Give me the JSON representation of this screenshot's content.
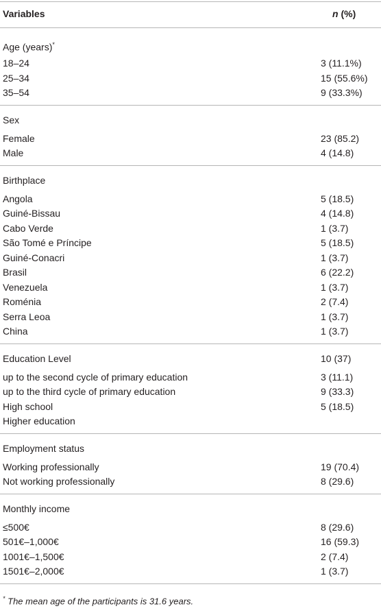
{
  "header": {
    "variables": "Variables",
    "n": "n",
    "percent": "(%)"
  },
  "sections": [
    {
      "title": "Age (years)",
      "title_marker": "*",
      "rows": [
        [
          "18–24",
          "3 (11.1%)"
        ],
        [
          "25–34",
          "15 (55.6%)"
        ],
        [
          "35–54",
          "9 (33.3%)"
        ]
      ]
    },
    {
      "title": "Sex",
      "rows": [
        [
          "Female",
          "23 (85.2)"
        ],
        [
          "Male",
          "4 (14.8)"
        ]
      ]
    },
    {
      "title": "Birthplace",
      "rows": [
        [
          "Angola",
          "5 (18.5)"
        ],
        [
          "Guiné-Bissau",
          "4 (14.8)"
        ],
        [
          "Cabo Verde",
          "1 (3.7)"
        ],
        [
          "São Tomé e Príncipe",
          "5 (18.5)"
        ],
        [
          "Guiné-Conacri",
          "1 (3.7)"
        ],
        [
          "Brasil",
          "6 (22.2)"
        ],
        [
          "Venezuela",
          "1 (3.7)"
        ],
        [
          "Roménia",
          "2 (7.4)"
        ],
        [
          "Serra Leoa",
          "1 (3.7)"
        ],
        [
          "China",
          "1 (3.7)"
        ]
      ]
    },
    {
      "title": "Education Level",
      "title_value": "10 (37)",
      "rows": [
        [
          "up to the second cycle of primary education",
          "3 (11.1)"
        ],
        [
          "up to the third cycle of primary education",
          "9 (33.3)"
        ],
        [
          "High school",
          "5 (18.5)"
        ],
        [
          "Higher education"
        ]
      ]
    },
    {
      "title": "Employment status",
      "rows": [
        [
          "Working professionally",
          "19 (70.4)"
        ],
        [
          "Not working professionally",
          "8 (29.6)"
        ]
      ]
    },
    {
      "title": "Monthly income",
      "rows": [
        [
          "≤500€",
          "8 (29.6)"
        ],
        [
          "501€–1,000€",
          "16 (59.3)"
        ],
        [
          "1001€–1,500€",
          "2 (7.4)"
        ],
        [
          "1501€–2,000€",
          "1 (3.7)"
        ]
      ]
    }
  ],
  "footnote": {
    "marker": "*",
    "text": "The mean age of the participants is 31.6 years."
  }
}
